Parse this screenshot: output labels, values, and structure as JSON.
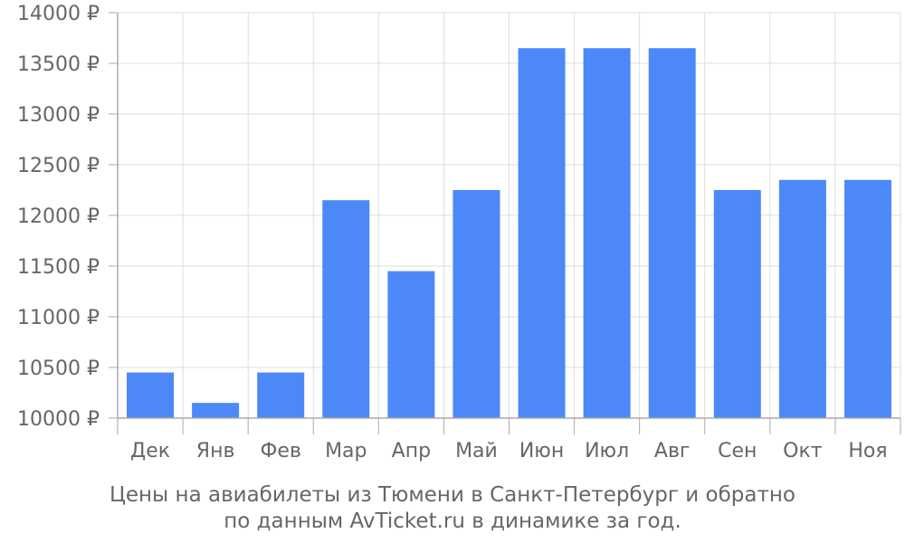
{
  "chart_data": {
    "type": "bar",
    "categories": [
      "Дек",
      "Янв",
      "Фев",
      "Мар",
      "Апр",
      "Май",
      "Июн",
      "Июл",
      "Авг",
      "Сен",
      "Окт",
      "Ноя"
    ],
    "values": [
      10450,
      10150,
      10450,
      12150,
      11450,
      12250,
      13650,
      13650,
      13650,
      12250,
      12350,
      12350
    ],
    "ylim": [
      10000,
      14000
    ],
    "y_ticks": [
      10000,
      10500,
      11000,
      11500,
      12000,
      12500,
      13000,
      13500,
      14000
    ],
    "y_tick_suffix": " ₽",
    "grid": true,
    "bar_color": "#4d88f9",
    "grid_color": "#dddddd",
    "axis_color": "#aaaaaa",
    "caption_line1": "Цены на авиабилеты из Тюмени в Санкт-Петербург и обратно",
    "caption_line2": "по данным AvTicket.ru в динамике за год."
  }
}
